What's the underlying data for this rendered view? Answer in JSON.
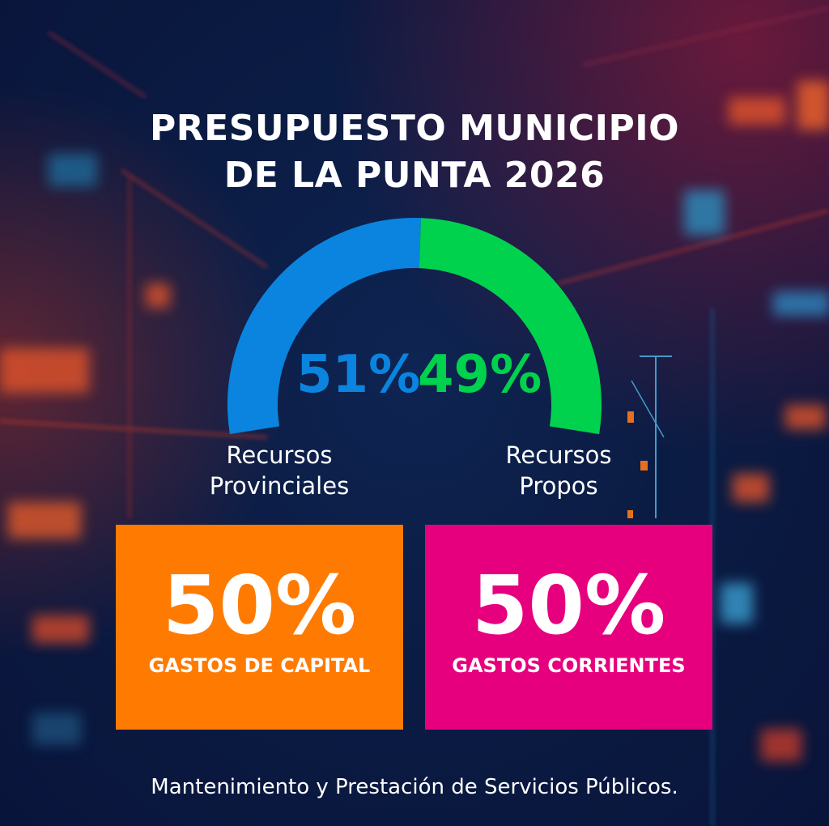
{
  "title": {
    "line1": "PRESUPUESTO MUNICIPIO",
    "line2": "DE LA PUNTA 2026"
  },
  "chart_data": [
    {
      "type": "pie",
      "style": "semicircle-gauge",
      "values": [
        51,
        49
      ],
      "value_labels": [
        "51%",
        "49%"
      ],
      "categories": [
        [
          "Recursos",
          "Provinciales"
        ],
        [
          "Recursos",
          "Propos"
        ]
      ],
      "colors": [
        "#0a84df",
        "#00d24e"
      ]
    },
    {
      "type": "table",
      "style": "tiles",
      "values": [
        50,
        50
      ],
      "value_labels": [
        "50%",
        "50%"
      ],
      "categories": [
        "GASTOS DE CAPITAL",
        "GASTOS CORRIENTES"
      ],
      "colors": [
        "#ff7a00",
        "#e6007e"
      ]
    }
  ],
  "footer": {
    "text": "Mantenimiento y Prestación de Servicios Públicos."
  },
  "colors": {
    "background": "#0b1c44",
    "text": "#ffffff"
  }
}
